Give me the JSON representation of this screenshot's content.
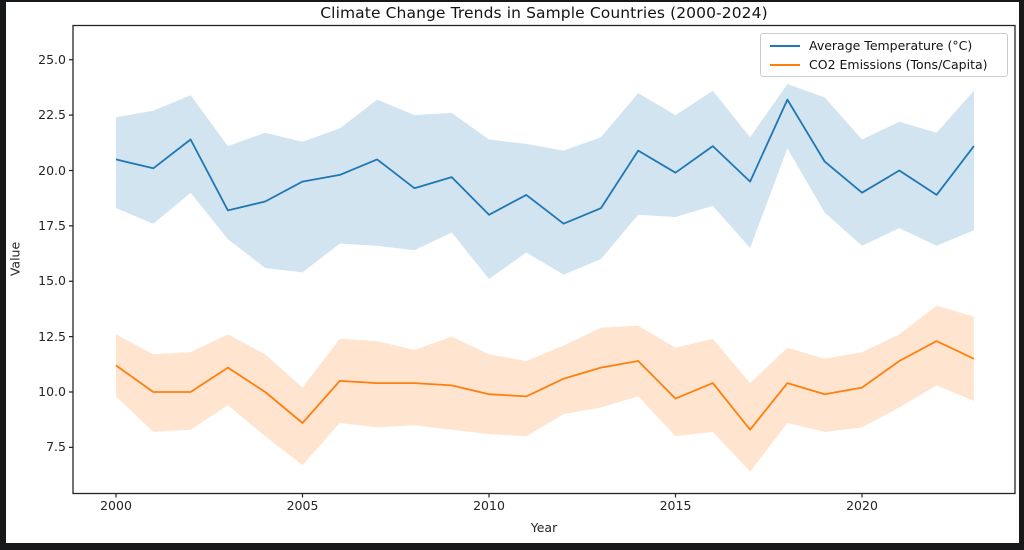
{
  "figure": {
    "title": "Climate Change Trends in Sample Countries (2000-2024)",
    "xlabel": "Year",
    "ylabel": "Value"
  },
  "legend": {
    "items": [
      {
        "label": "Average Temperature (°C)",
        "color": "#1f77b4"
      },
      {
        "label": "CO2 Emissions (Tons/Capita)",
        "color": "#ff7f0e"
      }
    ]
  },
  "axes": {
    "x_ticks": [
      "2000",
      "2005",
      "2010",
      "2015",
      "2020"
    ],
    "y_ticks": [
      "25.0",
      "22.5",
      "20.0",
      "17.5",
      "15.0",
      "12.5",
      "10.0",
      "7.5"
    ]
  },
  "chart_data": {
    "type": "line",
    "title": "Climate Change Trends in Sample Countries (2000-2024)",
    "xlabel": "Year",
    "ylabel": "Value",
    "grid": false,
    "legend_position": "upper right",
    "xlim": [
      1998.85,
      2024.15
    ],
    "ylim": [
      5.4,
      26.5
    ],
    "x": [
      2000,
      2001,
      2002,
      2003,
      2004,
      2005,
      2006,
      2007,
      2008,
      2009,
      2010,
      2011,
      2012,
      2013,
      2014,
      2015,
      2016,
      2017,
      2018,
      2019,
      2020,
      2021,
      2022,
      2023
    ],
    "series": [
      {
        "id": "temperature",
        "name": "Average Temperature (°C)",
        "color": "#1f77b4",
        "band_alpha": 0.2,
        "values": [
          20.5,
          20.1,
          21.4,
          18.2,
          18.6,
          19.5,
          19.8,
          20.5,
          19.2,
          19.7,
          18.0,
          18.9,
          17.6,
          18.3,
          20.9,
          19.9,
          21.1,
          19.5,
          23.2,
          20.4,
          19.0,
          20.0,
          18.9,
          21.1
        ],
        "band_upper": [
          22.4,
          22.7,
          23.4,
          21.1,
          21.7,
          21.3,
          21.9,
          23.2,
          22.5,
          22.6,
          21.4,
          21.2,
          20.9,
          21.5,
          23.5,
          22.5,
          23.6,
          21.5,
          23.9,
          23.3,
          21.4,
          22.2,
          21.7,
          23.6
        ],
        "band_lower": [
          18.3,
          17.6,
          19.0,
          16.9,
          15.6,
          15.4,
          16.7,
          16.6,
          16.4,
          17.2,
          15.1,
          16.3,
          15.3,
          16.0,
          18.0,
          17.9,
          18.4,
          16.5,
          21.0,
          18.1,
          16.6,
          17.4,
          16.6,
          17.3
        ]
      },
      {
        "id": "co2",
        "name": "CO2 Emissions (Tons/Capita)",
        "color": "#ff7f0e",
        "band_alpha": 0.2,
        "values": [
          11.2,
          10.0,
          10.0,
          11.1,
          10.0,
          8.6,
          10.5,
          10.4,
          10.4,
          10.3,
          9.9,
          9.8,
          10.6,
          11.1,
          11.4,
          9.7,
          10.4,
          8.3,
          10.4,
          9.9,
          10.2,
          11.4,
          12.3,
          11.5
        ],
        "band_upper": [
          12.6,
          11.7,
          11.8,
          12.6,
          11.7,
          10.2,
          12.4,
          12.3,
          11.9,
          12.5,
          11.7,
          11.4,
          12.1,
          12.9,
          13.0,
          12.0,
          12.4,
          10.4,
          12.0,
          11.5,
          11.8,
          12.6,
          13.9,
          13.4
        ],
        "band_lower": [
          9.8,
          8.2,
          8.3,
          9.4,
          8.0,
          6.7,
          8.6,
          8.4,
          8.5,
          8.3,
          8.1,
          8.0,
          9.0,
          9.3,
          9.8,
          8.0,
          8.2,
          6.4,
          8.6,
          8.2,
          8.4,
          9.3,
          10.3,
          9.6
        ]
      }
    ]
  }
}
